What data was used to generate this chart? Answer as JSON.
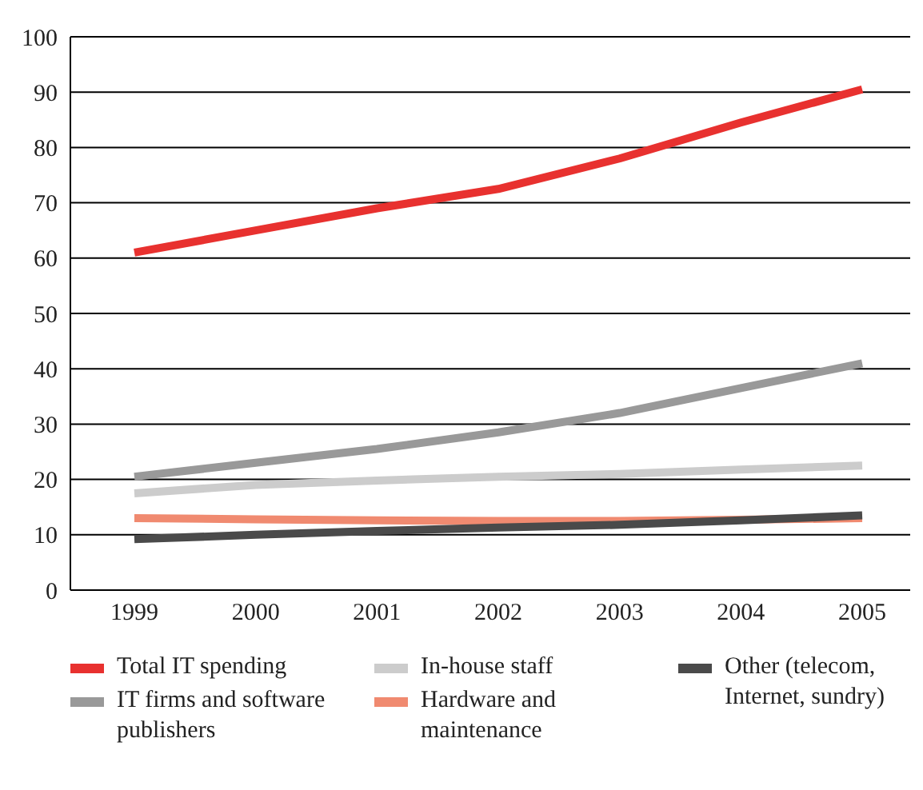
{
  "chart_data": {
    "type": "line",
    "categories": [
      "1999",
      "2000",
      "2001",
      "2002",
      "2003",
      "2004",
      "2005"
    ],
    "series": [
      {
        "name": "Total IT spending",
        "color": "#e8312f",
        "values": [
          61,
          65,
          69,
          72.5,
          78,
          84.5,
          90.5
        ]
      },
      {
        "name": "IT firms and software publishers",
        "color": "#999999",
        "values": [
          20.5,
          23,
          25.5,
          28.5,
          32,
          36.5,
          41
        ]
      },
      {
        "name": "In-house staff",
        "color": "#cccccc",
        "values": [
          17.5,
          19,
          19.8,
          20.5,
          21,
          21.8,
          22.5
        ]
      },
      {
        "name": "Hardware and maintenance",
        "color": "#f08a70",
        "values": [
          13,
          12.8,
          12.6,
          12.5,
          12.5,
          12.7,
          13
        ]
      },
      {
        "name": "Other (telecom, Internet, sundry)",
        "color": "#4a4a4a",
        "values": [
          9.2,
          10,
          10.7,
          11.3,
          11.8,
          12.6,
          13.5
        ]
      }
    ],
    "ylim": [
      0,
      100
    ],
    "yticks": [
      0,
      10,
      20,
      30,
      40,
      50,
      60,
      70,
      80,
      90,
      100
    ],
    "grid": "y",
    "legend": "bottom",
    "marker": "none",
    "line_style": "solid"
  }
}
